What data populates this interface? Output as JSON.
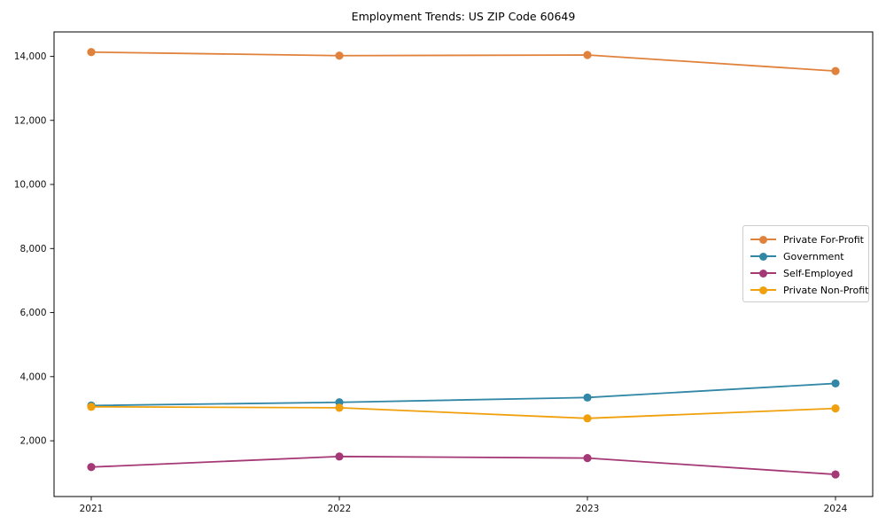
{
  "chart_data": {
    "type": "line",
    "title": "Employment Trends: US ZIP Code 60649",
    "xlabel": "",
    "ylabel": "",
    "x": [
      2021,
      2022,
      2023,
      2024
    ],
    "x_tick_labels": [
      "2021",
      "2022",
      "2023",
      "2024"
    ],
    "y_tick_values": [
      2000,
      4000,
      6000,
      8000,
      10000,
      12000,
      14000
    ],
    "y_tick_labels": [
      "2,000",
      "4,000",
      "6,000",
      "8,000",
      "10,000",
      "12,000",
      "14,000"
    ],
    "xlim": [
      2020.85,
      2024.15
    ],
    "ylim": [
      260,
      14760
    ],
    "grid": false,
    "marker": "circle",
    "legend_position": "center-right",
    "series": [
      {
        "name": "Private For-Profit",
        "color": "#e0813c",
        "values": [
          14130,
          14020,
          14040,
          13540
        ]
      },
      {
        "name": "Government",
        "color": "#3187a5",
        "values": [
          3100,
          3200,
          3350,
          3790
        ]
      },
      {
        "name": "Self-Employed",
        "color": "#a53976",
        "values": [
          1180,
          1510,
          1460,
          950
        ]
      },
      {
        "name": "Private Non-Profit",
        "color": "#f0a00c",
        "values": [
          3060,
          3030,
          2700,
          3010
        ]
      }
    ]
  }
}
